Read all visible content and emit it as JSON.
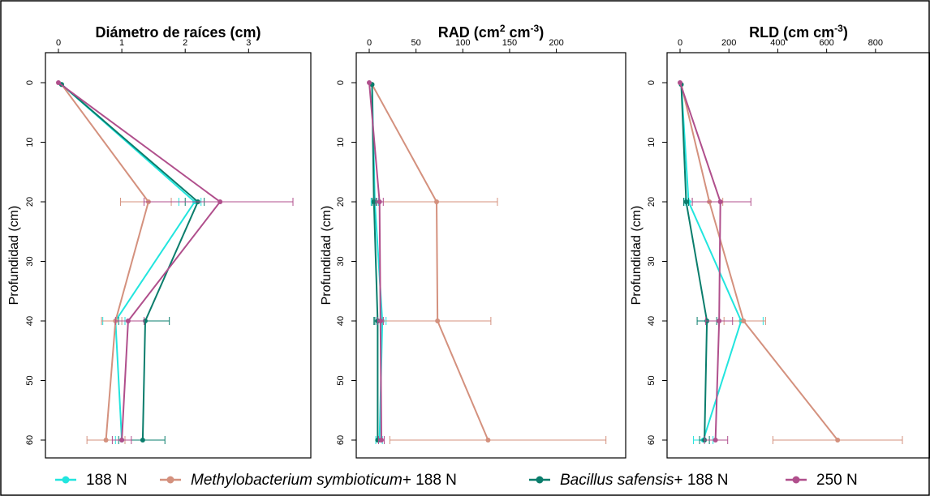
{
  "chart_data": [
    {
      "type": "line",
      "title": "Diámetro de raíces (cm)",
      "title_super": [],
      "ylabel": "Profundidad (cm)",
      "xlim": [
        0,
        3.7
      ],
      "ylim": [
        0,
        62
      ],
      "xticks": [
        "0",
        "1",
        "2",
        "3"
      ],
      "xtick_values": [
        0,
        1,
        2,
        3
      ],
      "yticks": [
        "0",
        "10",
        "20",
        "30",
        "40",
        "50",
        "60"
      ],
      "ytick_values": [
        0,
        10,
        20,
        30,
        40,
        50,
        60
      ],
      "y_inverted": true,
      "series": [
        {
          "key": "s188",
          "color": "#22e5de",
          "points": [
            [
              0.05,
              0.3
            ],
            [
              2.15,
              20
            ],
            [
              0.9,
              40
            ],
            [
              1.0,
              60
            ]
          ],
          "err": [
            [
              0.05,
              0,
              0
            ],
            [
              2.15,
              1.9,
              2.25
            ],
            [
              0.9,
              0.7,
              1.05
            ],
            [
              1.0,
              0.9,
              1.05
            ]
          ]
        },
        {
          "key": "meth",
          "color": "#d4917e",
          "points": [
            [
              0.05,
              0.3
            ],
            [
              1.42,
              20
            ],
            [
              0.9,
              40
            ],
            [
              0.75,
              60
            ]
          ],
          "err": [
            [
              0.05,
              0,
              0
            ],
            [
              1.42,
              0.98,
              1.78
            ],
            [
              0.9,
              0.68,
              1.0
            ],
            [
              0.75,
              0.45,
              1.05
            ]
          ]
        },
        {
          "key": "baci",
          "color": "#0a7d6c",
          "points": [
            [
              0.05,
              0.3
            ],
            [
              2.2,
              20
            ],
            [
              1.37,
              40
            ],
            [
              1.33,
              60
            ]
          ],
          "err": [
            [
              0.05,
              0,
              0
            ],
            [
              2.2,
              2.0,
              2.3
            ],
            [
              1.37,
              0.95,
              1.75
            ],
            [
              1.33,
              0.95,
              1.68
            ]
          ]
        },
        {
          "key": "n250",
          "color": "#b04f8c",
          "points": [
            [
              0.0,
              0
            ],
            [
              2.55,
              20
            ],
            [
              1.1,
              40
            ],
            [
              1.0,
              60
            ]
          ],
          "err": [
            [
              0.0,
              0,
              0
            ],
            [
              2.55,
              1.35,
              3.7
            ],
            [
              1.1,
              0.9,
              1.35
            ],
            [
              1.0,
              0.85,
              1.15
            ]
          ]
        }
      ]
    },
    {
      "type": "line",
      "title": "RAD (cm",
      "title_super": [
        "2",
        " cm",
        "-3",
        ")"
      ],
      "ylabel": "Profundidad (cm)",
      "xlim": [
        0,
        255
      ],
      "ylim": [
        0,
        62
      ],
      "xticks": [
        "0",
        "50",
        "100",
        "150",
        "200"
      ],
      "xtick_values": [
        0,
        50,
        100,
        150,
        200
      ],
      "yticks": [
        "0",
        "10",
        "20",
        "30",
        "40",
        "50",
        "60"
      ],
      "ytick_values": [
        0,
        10,
        20,
        30,
        40,
        50,
        60
      ],
      "y_inverted": true,
      "series": [
        {
          "key": "s188",
          "color": "#22e5de",
          "points": [
            [
              3,
              0.3
            ],
            [
              6,
              20
            ],
            [
              14,
              40
            ],
            [
              11,
              60
            ]
          ],
          "err": [
            [
              3,
              0,
              0
            ],
            [
              6,
              2,
              10
            ],
            [
              14,
              8,
              18
            ],
            [
              11,
              7,
              14
            ]
          ]
        },
        {
          "key": "meth",
          "color": "#d4917e",
          "points": [
            [
              3,
              0.3
            ],
            [
              72,
              20
            ],
            [
              73,
              40
            ],
            [
              127,
              60
            ]
          ],
          "err": [
            [
              3,
              0,
              0
            ],
            [
              72,
              5,
              137
            ],
            [
              73,
              15,
              130
            ],
            [
              127,
              22,
              253
            ]
          ]
        },
        {
          "key": "baci",
          "color": "#0a7d6c",
          "points": [
            [
              3,
              0.3
            ],
            [
              5,
              20
            ],
            [
              9,
              40
            ],
            [
              9,
              60
            ]
          ],
          "err": [
            [
              3,
              0,
              0
            ],
            [
              5,
              3,
              8
            ],
            [
              9,
              6,
              12
            ],
            [
              9,
              5,
              12
            ]
          ]
        },
        {
          "key": "n250",
          "color": "#b04f8c",
          "points": [
            [
              0,
              0
            ],
            [
              11,
              20
            ],
            [
              12,
              40
            ],
            [
              13,
              60
            ]
          ],
          "err": [
            [
              0,
              0,
              0
            ],
            [
              11,
              7,
              15
            ],
            [
              12,
              9,
              15
            ],
            [
              13,
              10,
              16
            ]
          ]
        }
      ]
    },
    {
      "type": "line",
      "title": "RLD (cm cm",
      "title_super": [
        "-3",
        ")"
      ],
      "ylabel": "Profundidad (cm)",
      "xlim": [
        0,
        950
      ],
      "ylim": [
        0,
        62
      ],
      "xticks": [
        "0",
        "200",
        "400",
        "600",
        "800"
      ],
      "xtick_values": [
        0,
        200,
        400,
        600,
        800
      ],
      "yticks": [
        "0",
        "10",
        "20",
        "30",
        "40",
        "50",
        "60"
      ],
      "ytick_values": [
        0,
        10,
        20,
        30,
        40,
        50,
        60
      ],
      "y_inverted": true,
      "series": [
        {
          "key": "s188",
          "color": "#22e5de",
          "points": [
            [
              5,
              0.3
            ],
            [
              35,
              20
            ],
            [
              250,
              40
            ],
            [
              95,
              60
            ]
          ],
          "err": [
            [
              5,
              0,
              0
            ],
            [
              35,
              20,
              50
            ],
            [
              250,
              160,
              340
            ],
            [
              95,
              55,
              135
            ]
          ]
        },
        {
          "key": "meth",
          "color": "#d4917e",
          "points": [
            [
              5,
              0.3
            ],
            [
              120,
              20
            ],
            [
              260,
              40
            ],
            [
              645,
              60
            ]
          ],
          "err": [
            [
              5,
              0,
              0
            ],
            [
              120,
              50,
              175
            ],
            [
              260,
              180,
              350
            ],
            [
              645,
              380,
              910
            ]
          ]
        },
        {
          "key": "baci",
          "color": "#0a7d6c",
          "points": [
            [
              5,
              0.3
            ],
            [
              25,
              20
            ],
            [
              110,
              40
            ],
            [
              100,
              60
            ]
          ],
          "err": [
            [
              5,
              0,
              0
            ],
            [
              25,
              15,
              35
            ],
            [
              110,
              70,
              150
            ],
            [
              100,
              80,
              120
            ]
          ]
        },
        {
          "key": "n250",
          "color": "#b04f8c",
          "points": [
            [
              0,
              0
            ],
            [
              165,
              20
            ],
            [
              160,
              40
            ],
            [
              145,
              60
            ]
          ],
          "err": [
            [
              0,
              0,
              0
            ],
            [
              165,
              50,
              290
            ],
            [
              160,
              105,
              215
            ],
            [
              145,
              100,
              195
            ]
          ]
        }
      ]
    }
  ],
  "legend": {
    "placement": "bottom",
    "items": [
      {
        "key": "s188",
        "color": "#22e5de",
        "italic": "",
        "label": "188 N"
      },
      {
        "key": "meth",
        "color": "#d4917e",
        "italic": "Methylobacterium symbioticum",
        "label": "+ 188 N"
      },
      {
        "key": "baci",
        "color": "#0a7d6c",
        "italic": "Bacillus safensis",
        "label": "+ 188 N"
      },
      {
        "key": "n250",
        "color": "#b04f8c",
        "italic": "",
        "label": "250 N"
      }
    ]
  }
}
